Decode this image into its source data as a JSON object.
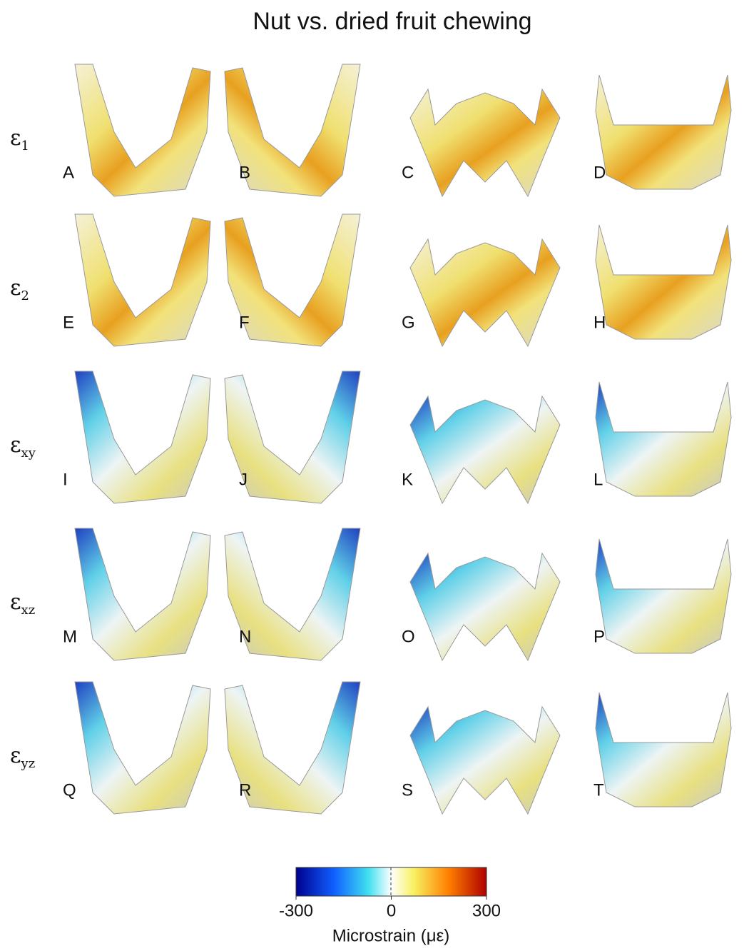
{
  "title": "Nut vs. dried fruit chewing",
  "rows": [
    {
      "symbol": "ε",
      "subscript": "1",
      "panels": [
        "A",
        "B",
        "C",
        "D"
      ]
    },
    {
      "symbol": "ε",
      "subscript": "2",
      "panels": [
        "E",
        "F",
        "G",
        "H"
      ]
    },
    {
      "symbol": "ε",
      "subscript": "xy",
      "panels": [
        "I",
        "J",
        "K",
        "L"
      ]
    },
    {
      "symbol": "ε",
      "subscript": "xz",
      "panels": [
        "M",
        "N",
        "O",
        "P"
      ]
    },
    {
      "symbol": "ε",
      "subscript": "yz",
      "panels": [
        "Q",
        "R",
        "S",
        "T"
      ]
    }
  ],
  "colorbar": {
    "ticks": [
      -300,
      0,
      300
    ],
    "label": "Microstrain (με)"
  }
}
